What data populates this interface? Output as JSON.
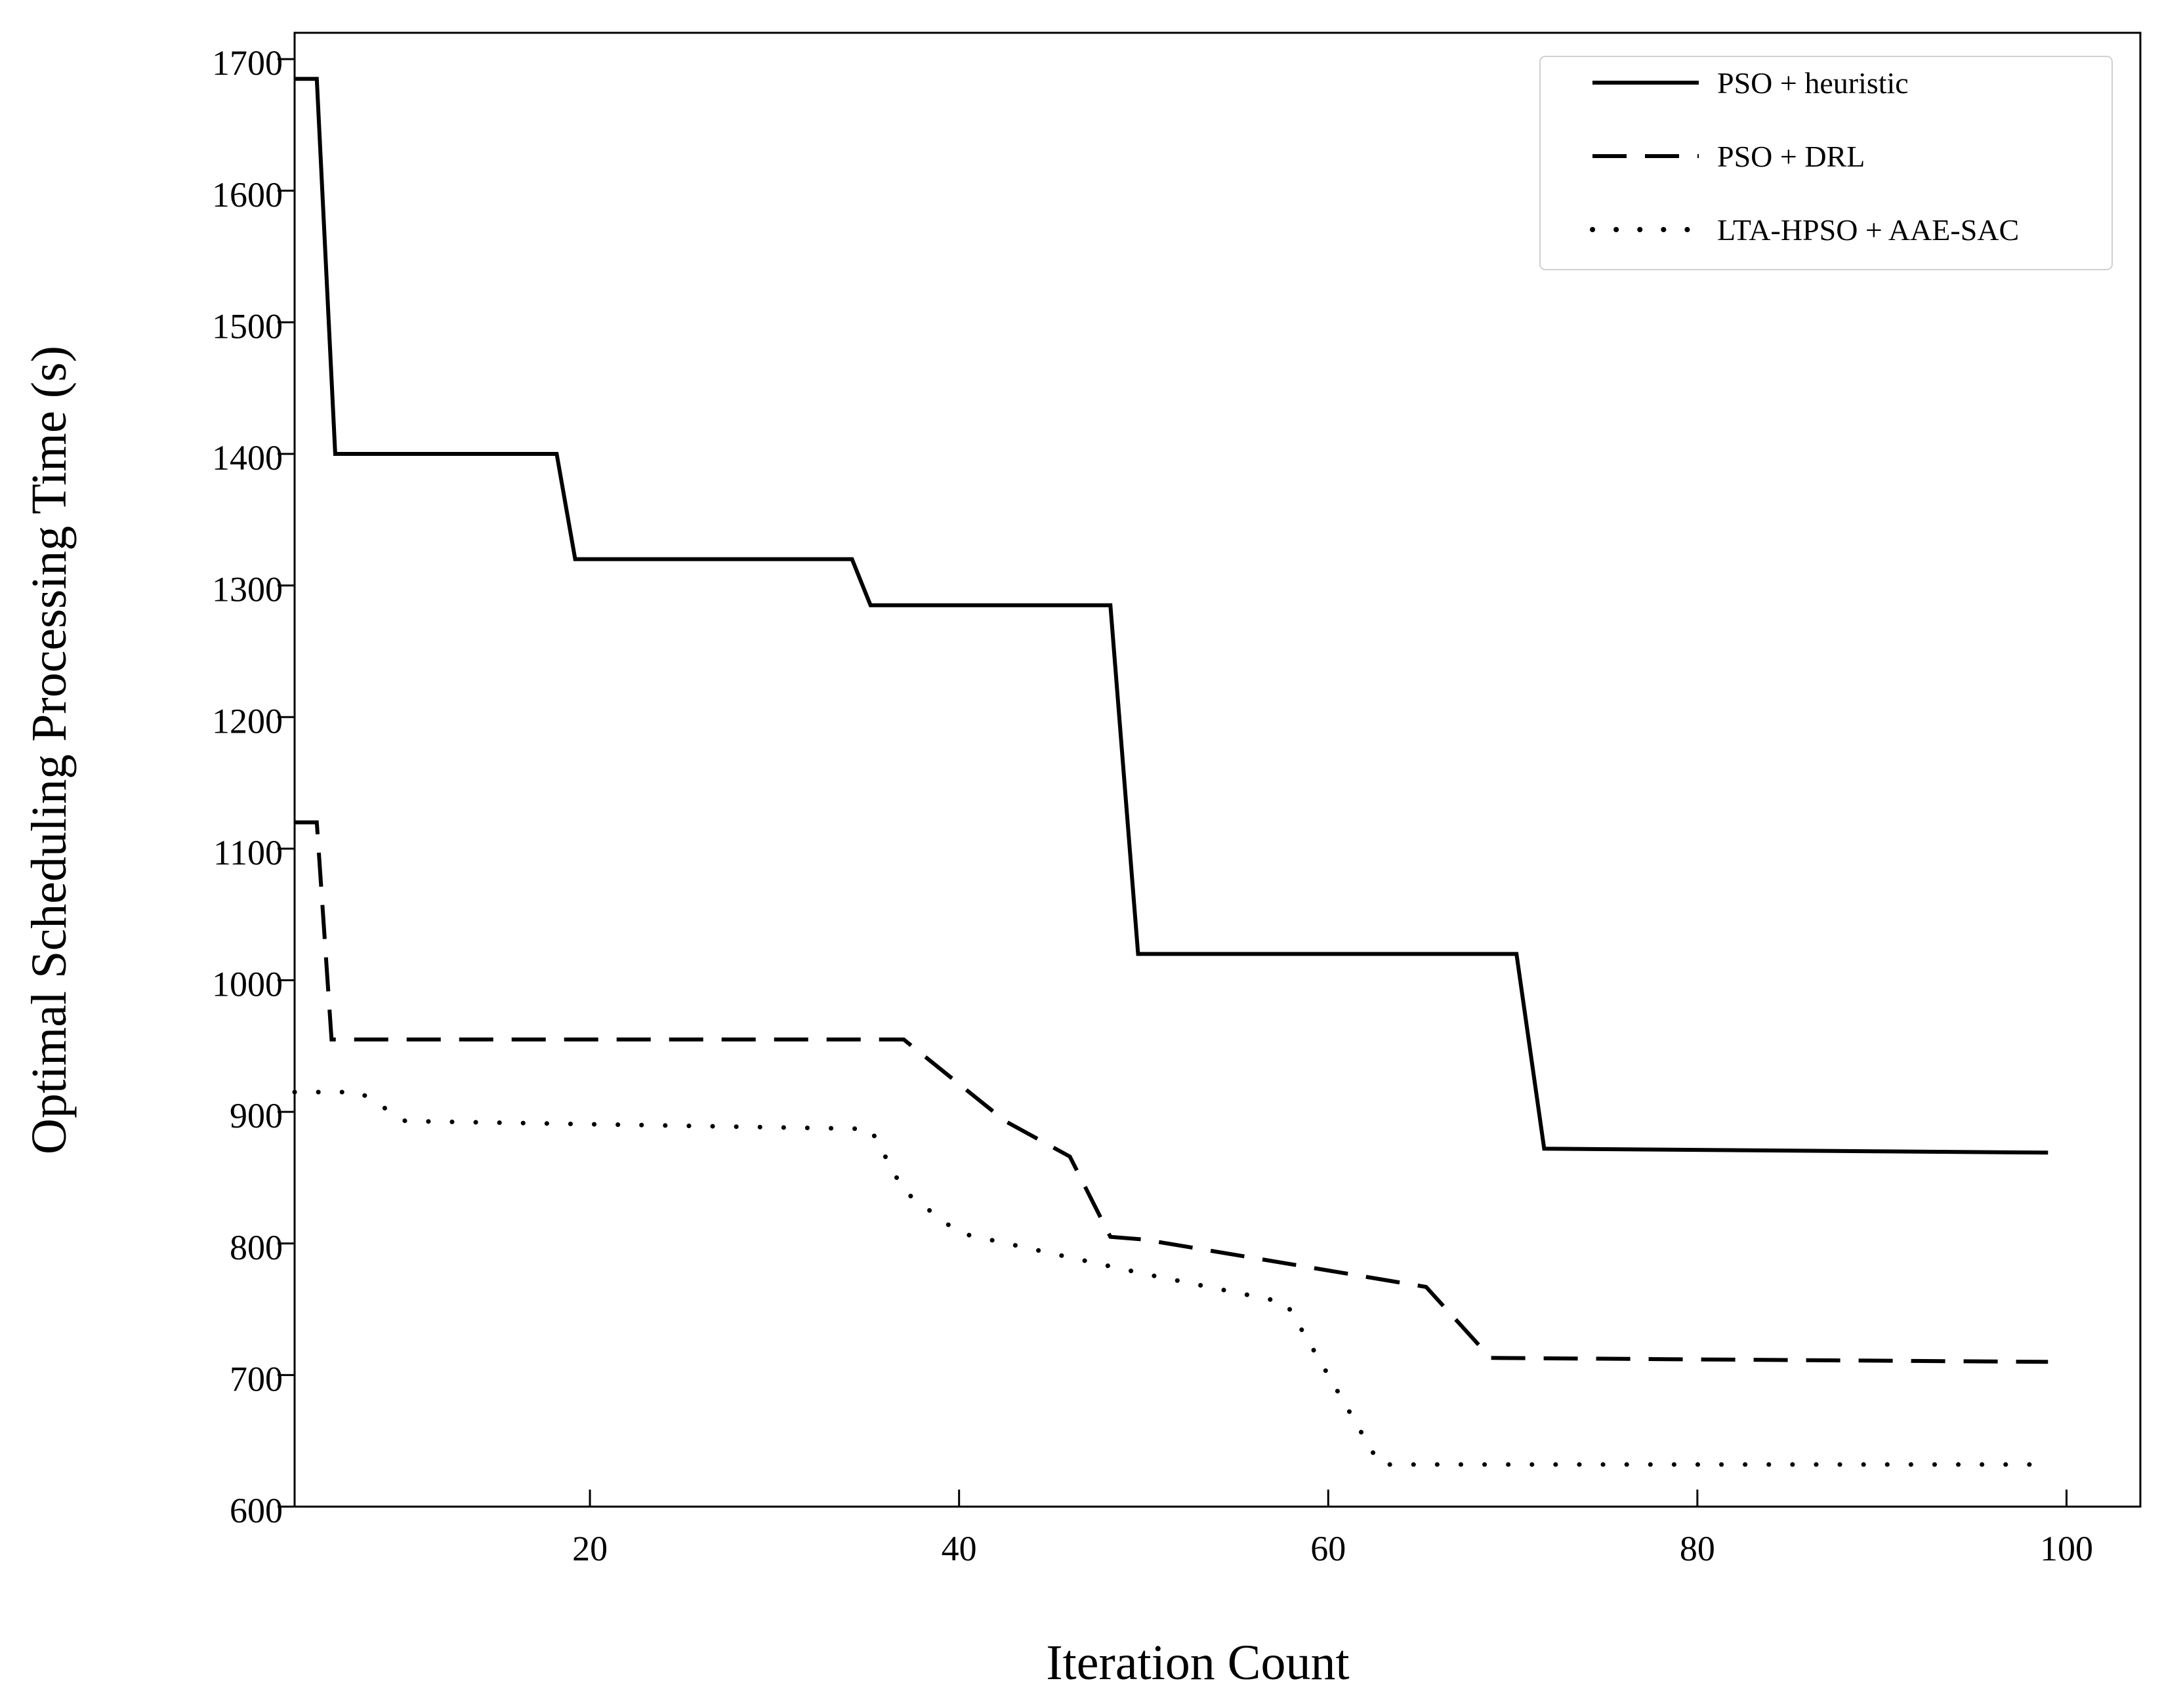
{
  "chart_data": {
    "type": "line",
    "title": "",
    "xlabel": "Iteration Count",
    "ylabel": "Optimal Scheduling Processing Time (s)",
    "xlim": [
      4,
      104
    ],
    "ylim": [
      600,
      1720
    ],
    "xticks": [
      20,
      40,
      60,
      80,
      100
    ],
    "yticks": [
      600,
      700,
      800,
      900,
      1000,
      1100,
      1200,
      1300,
      1400,
      1500,
      1600,
      1700
    ],
    "xtick_labels": [
      "20",
      "40",
      "60",
      "80",
      "100"
    ],
    "ytick_labels": [
      "600",
      "700",
      "800",
      "900",
      "1000",
      "1100",
      "1200",
      "1300",
      "1400",
      "1500",
      "1600",
      "1700"
    ],
    "legend_position": "top-right",
    "grid": false,
    "series": [
      {
        "name": "PSO + heuristic",
        "style": "solid",
        "color": "#000000",
        "x": [
          4,
          5.2,
          6.2,
          18.2,
          19.2,
          34.2,
          35.2,
          48.2,
          49.7,
          70.2,
          71.7,
          99
        ],
        "y": [
          1685,
          1685,
          1400,
          1400,
          1320,
          1320,
          1285,
          1285,
          1020,
          1020,
          872,
          869
        ]
      },
      {
        "name": "PSO + DRL",
        "style": "dashed",
        "color": "#000000",
        "x": [
          4,
          5.2,
          6,
          37,
          42.5,
          46,
          48.2,
          50,
          65.3,
          68.8,
          99
        ],
        "y": [
          1120,
          1120,
          955,
          955,
          893,
          866,
          805,
          803,
          767,
          713,
          710
        ]
      },
      {
        "name": "LTA-HPSO + AAE-SAC",
        "style": "dotted",
        "color": "#000000",
        "x": [
          4,
          7.5,
          10,
          35.2,
          37,
          40,
          50,
          57.7,
          60,
          62.8,
          99
        ],
        "y": [
          915,
          915,
          893,
          887,
          840,
          808,
          777,
          755,
          700,
          632,
          632
        ]
      }
    ]
  }
}
